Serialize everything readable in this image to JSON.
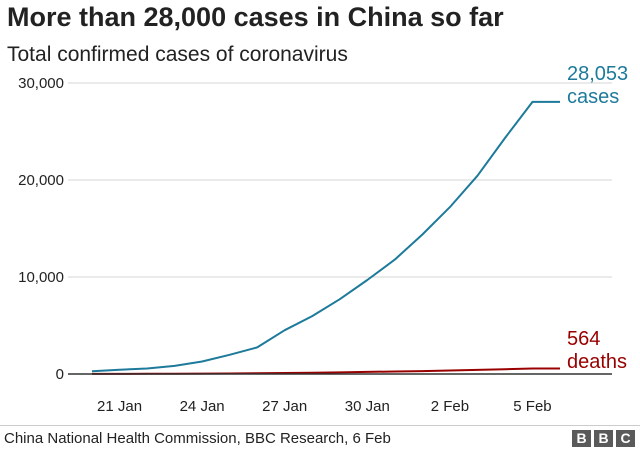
{
  "chart_data": {
    "type": "line",
    "title": "More than 28,000 cases in China so far",
    "subtitle": "Total confirmed cases of coronavirus",
    "x": [
      "2020-01-20",
      "2020-01-21",
      "2020-01-22",
      "2020-01-23",
      "2020-01-24",
      "2020-01-25",
      "2020-01-26",
      "2020-01-27",
      "2020-01-28",
      "2020-01-29",
      "2020-01-30",
      "2020-01-31",
      "2020-02-01",
      "2020-02-02",
      "2020-02-03",
      "2020-02-04",
      "2020-02-05",
      "2020-02-06"
    ],
    "x_tick_labels": [
      {
        "date": "2020-01-21",
        "label": "21 Jan"
      },
      {
        "date": "2020-01-24",
        "label": "24 Jan"
      },
      {
        "date": "2020-01-27",
        "label": "27 Jan"
      },
      {
        "date": "2020-01-30",
        "label": "30 Jan"
      },
      {
        "date": "2020-02-02",
        "label": "2 Feb"
      },
      {
        "date": "2020-02-05",
        "label": "5 Feb"
      }
    ],
    "y_ticks": [
      0,
      10000,
      20000,
      30000
    ],
    "y_tick_labels": [
      "0",
      "10,000",
      "20,000",
      "30,000"
    ],
    "ylim": [
      0,
      30000
    ],
    "grid": true,
    "series": [
      {
        "name": "cases",
        "color": "#1d7a9b",
        "values": [
          291,
          440,
          571,
          830,
          1287,
          1975,
          2744,
          4515,
          5974,
          7711,
          9692,
          11791,
          14380,
          17205,
          20438,
          24324,
          28053,
          28053
        ],
        "end_value_label": "28,053",
        "end_text_label": "cases"
      },
      {
        "name": "deaths",
        "color": "#990000",
        "values": [
          6,
          9,
          17,
          25,
          41,
          56,
          80,
          106,
          132,
          170,
          213,
          259,
          304,
          361,
          425,
          490,
          564,
          564
        ],
        "end_value_label": "564",
        "end_text_label": "deaths"
      }
    ]
  },
  "footer": {
    "source": "China National Health Commission, BBC Research, 6 Feb",
    "logo_letters": [
      "B",
      "B",
      "C"
    ]
  }
}
